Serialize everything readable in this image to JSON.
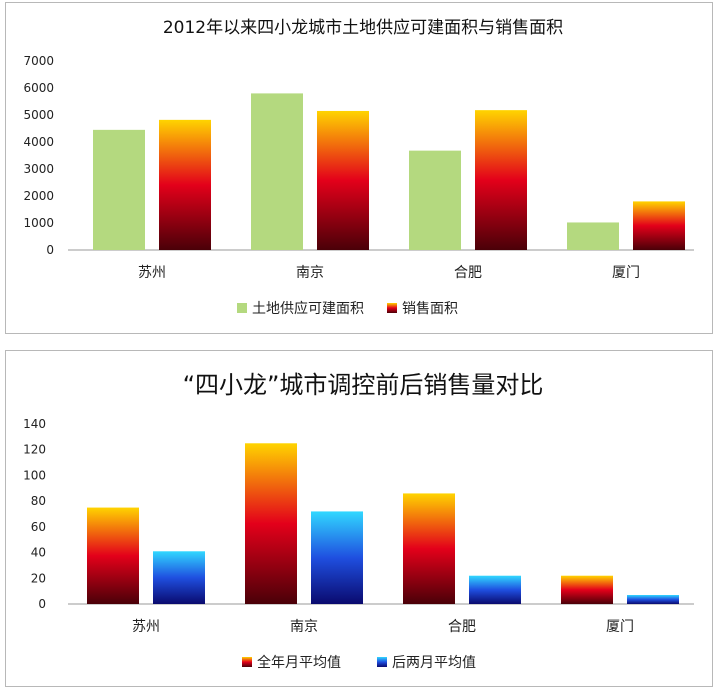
{
  "chart_data": [
    {
      "type": "bar",
      "title": "2012年以来四小龙城市土地供应可建面积与销售面积",
      "categories": [
        "苏州",
        "南京",
        "合肥",
        "厦门"
      ],
      "series": [
        {
          "name": "土地供应可建面积",
          "values": [
            4450,
            5800,
            3680,
            1020
          ],
          "color": "#b4d97f"
        },
        {
          "name": "销售面积",
          "values": [
            4820,
            5150,
            5180,
            1800
          ],
          "gradient": [
            "#4a0008",
            "#e3001a",
            "#ffd400"
          ]
        }
      ],
      "yticks": [
        "0",
        "1000",
        "2000",
        "3000",
        "4000",
        "5000",
        "6000",
        "7000"
      ],
      "ylim": [
        0,
        7000
      ],
      "legend_position": "bottom"
    },
    {
      "type": "bar",
      "title": "“四小龙”城市调控前后销售量对比",
      "categories": [
        "苏州",
        "南京",
        "合肥",
        "厦门"
      ],
      "series": [
        {
          "name": "全年月平均值",
          "values": [
            75,
            125,
            86,
            22
          ],
          "gradient": [
            "#4a0008",
            "#e3001a",
            "#ffd400"
          ]
        },
        {
          "name": "后两月平均值",
          "values": [
            41,
            72,
            22,
            7
          ],
          "gradient": [
            "#0a0a6e",
            "#1f4fe0",
            "#31d8ff"
          ]
        }
      ],
      "yticks": [
        "0",
        "20",
        "40",
        "60",
        "80",
        "100",
        "120",
        "140"
      ],
      "ylim": [
        0,
        140
      ],
      "legend_position": "bottom"
    }
  ]
}
